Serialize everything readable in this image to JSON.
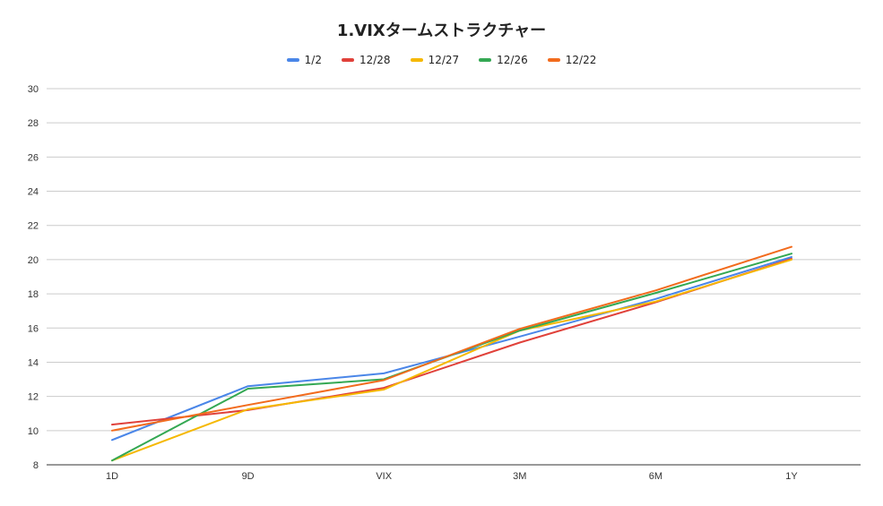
{
  "chart_data": {
    "type": "line",
    "title": "1.VIXタームストラクチャー",
    "xlabel": "",
    "ylabel": "",
    "categories": [
      "1D",
      "9D",
      "VIX",
      "3M",
      "6M",
      "1Y"
    ],
    "ylim": [
      8,
      30
    ],
    "yticks": [
      "8",
      "10",
      "12",
      "14",
      "16",
      "18",
      "20",
      "22",
      "24",
      "26",
      "28",
      "30"
    ],
    "grid": true,
    "legend_position": "top",
    "series": [
      {
        "name": "1/2",
        "color": "#4a86e8",
        "values": [
          9.45,
          12.6,
          13.35,
          15.5,
          17.7,
          20.15
        ]
      },
      {
        "name": "12/28",
        "color": "#e0413a",
        "values": [
          10.35,
          11.2,
          12.5,
          15.15,
          17.5,
          20.05
        ]
      },
      {
        "name": "12/27",
        "color": "#f5b800",
        "values": [
          8.25,
          11.25,
          12.4,
          15.85,
          17.55,
          20.0
        ]
      },
      {
        "name": "12/26",
        "color": "#34a853",
        "values": [
          8.25,
          12.45,
          13.0,
          15.85,
          18.05,
          20.35
        ]
      },
      {
        "name": "12/22",
        "color": "#f26b1d",
        "values": [
          10.0,
          11.5,
          12.95,
          15.95,
          18.2,
          20.75
        ]
      }
    ]
  }
}
